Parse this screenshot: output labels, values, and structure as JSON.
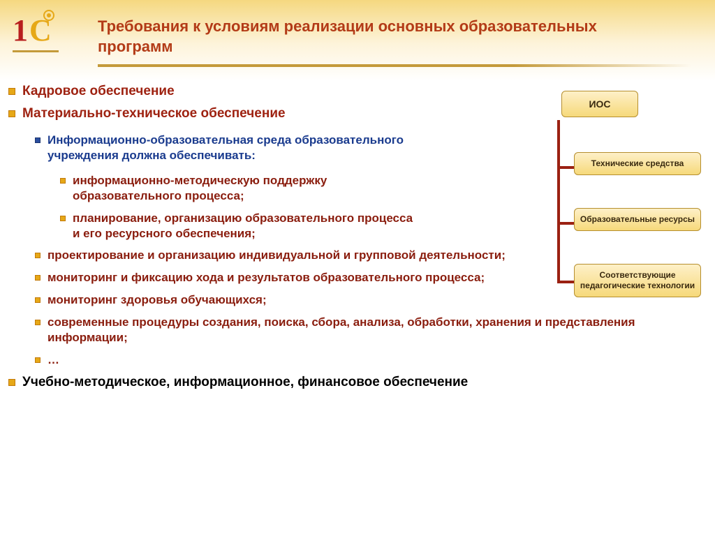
{
  "colors": {
    "title": "#b33b17",
    "top_text": "#9e2211",
    "blue_text": "#1a3b8e",
    "brown_text": "#8a1d0e",
    "black_text": "#000000",
    "bullet_orange": "#e6a817",
    "bullet_blue": "#2a4d9e",
    "connector": "#9b2112",
    "node_bg_top": "#fef0c8",
    "node_bg_bottom": "#f6d97a",
    "node_border": "#b58e2e",
    "underline": "#c49a3a"
  },
  "title": "Требования к условиям реализации основных образовательных программ",
  "top_bullets": [
    "Кадровое обеспечение",
    "Материально-техническое обеспечение"
  ],
  "blue_heading": "Информационно-образовательная среда образовательного учреждения должна обеспечивать:",
  "lvl3_items": [
    "информационно-методическую поддержку образовательного процесса;",
    "планирование, организацию образовательного процесса и его ресурсного обеспечения;"
  ],
  "lvl2_brown_items": [
    "проектирование и организацию индивидуальной и групповой деятельности;",
    "мониторинг и фиксацию хода и результатов образовательного процесса;",
    "мониторинг здоровья обучающихся;",
    "современные процедуры создания, поиска, сбора, анализа, обработки, хранения и представления информации;",
    "…"
  ],
  "bottom_bullet": "Учебно-методическое, информационное, финансовое обеспечение",
  "diagram": {
    "root": "ИОС",
    "children": [
      "Технические средства",
      "Образовательные ресурсы",
      "Соответствующие педагогические технологии"
    ],
    "child_y": [
      88,
      168,
      248
    ],
    "connector_y": [
      108,
      188,
      272
    ],
    "vertical_height": 234,
    "hor_width": 24,
    "root_fontsize": 14,
    "child_fontsize": 12
  }
}
